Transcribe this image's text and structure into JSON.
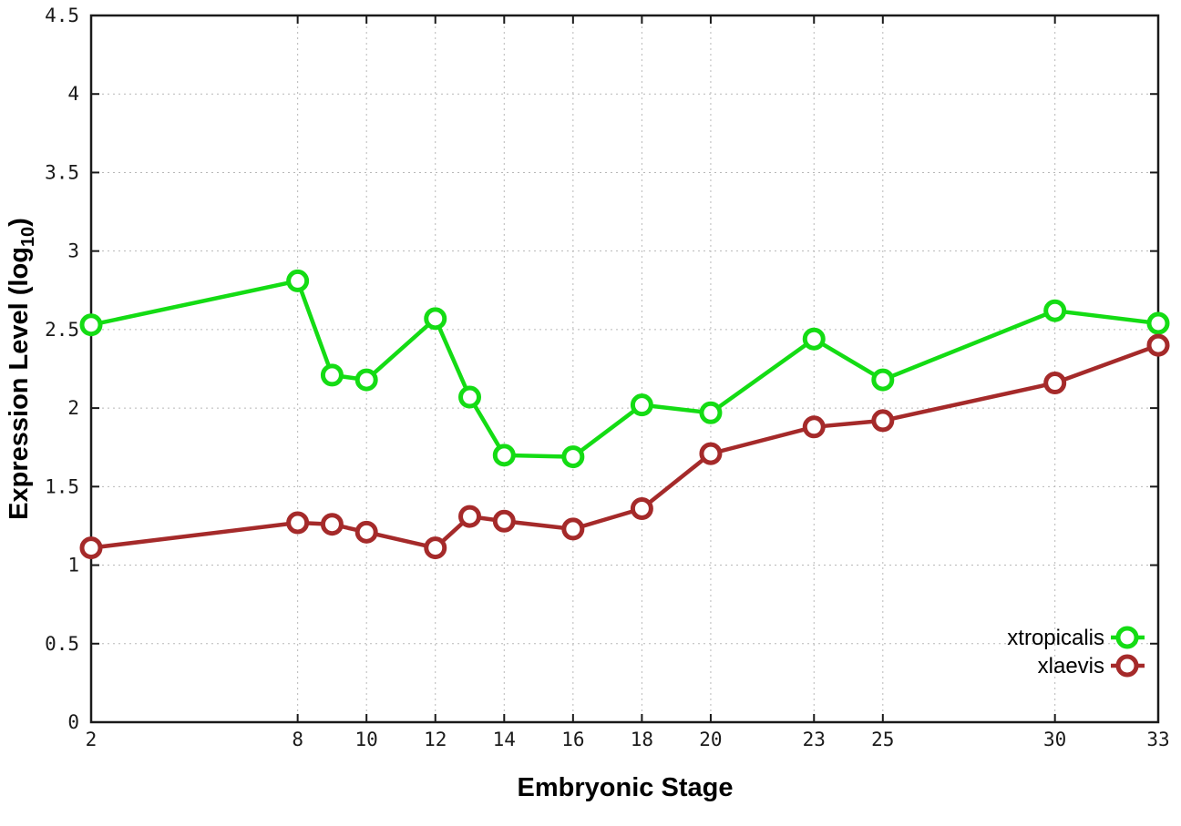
{
  "chart_data": {
    "type": "line",
    "title": "",
    "xlabel": "Embryonic Stage",
    "ylabel": "Expression Level (log10)",
    "ylabel_parts": {
      "pre": "Expression Level (log",
      "sub": "10",
      "post": ")"
    },
    "x": [
      2,
      8,
      9,
      10,
      12,
      13,
      14,
      16,
      18,
      20,
      23,
      25,
      30,
      33
    ],
    "series": [
      {
        "name": "xtropicalis",
        "color": "#14dc14",
        "values": [
          2.53,
          2.81,
          2.21,
          2.18,
          2.57,
          2.07,
          1.7,
          1.69,
          2.02,
          1.97,
          2.44,
          2.18,
          2.62,
          2.54
        ]
      },
      {
        "name": "xlaevis",
        "color": "#a52a2a",
        "values": [
          1.11,
          1.27,
          1.26,
          1.21,
          1.11,
          1.31,
          1.28,
          1.23,
          1.36,
          1.71,
          1.88,
          1.92,
          2.16,
          2.4
        ]
      }
    ],
    "x_ticks": [
      2,
      8,
      10,
      12,
      14,
      16,
      18,
      20,
      23,
      25,
      30,
      33
    ],
    "y_ticks": [
      0,
      0.5,
      1,
      1.5,
      2,
      2.5,
      3,
      3.5,
      4,
      4.5
    ],
    "xlim": [
      2,
      33
    ],
    "ylim": [
      0,
      4.5
    ],
    "grid": true,
    "legend_position": "bottom-right",
    "marker": "open-circle",
    "colors": {
      "background": "#ffffff",
      "border": "#1a1a1a",
      "grid": "#b8b8b8",
      "text": "#1a1a1a"
    }
  }
}
